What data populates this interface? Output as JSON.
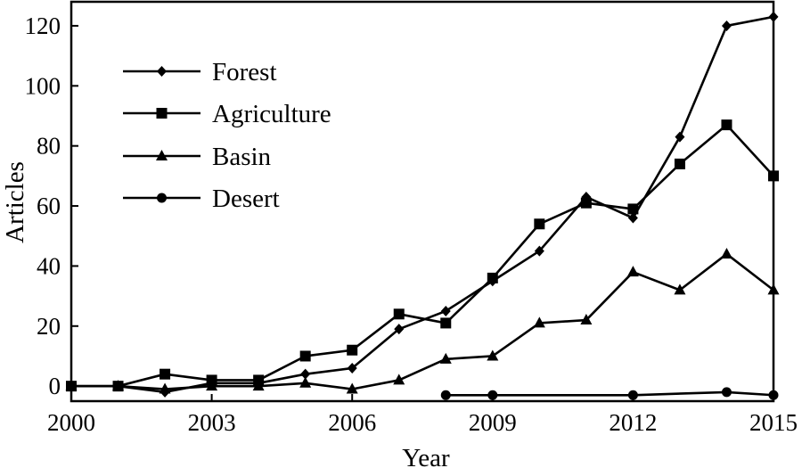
{
  "chart_data": {
    "type": "line",
    "title": "",
    "xlabel": "Year",
    "ylabel": "Articles",
    "xlim": [
      2000,
      2015
    ],
    "ylim": [
      -5,
      128
    ],
    "xticks": [
      2000,
      2003,
      2006,
      2009,
      2012,
      2015
    ],
    "yticks": [
      0,
      20,
      40,
      60,
      80,
      100,
      120
    ],
    "grid": false,
    "legend_position": "top-left",
    "series": [
      {
        "name": "Forest",
        "marker": "diamond",
        "color": "#000000",
        "x": [
          2000,
          2001,
          2002,
          2003,
          2004,
          2005,
          2006,
          2007,
          2008,
          2009,
          2010,
          2011,
          2012,
          2013,
          2014,
          2015
        ],
        "y": [
          0,
          0,
          -2,
          1,
          1,
          4,
          6,
          19,
          25,
          35,
          45,
          63,
          56,
          83,
          120,
          123
        ]
      },
      {
        "name": "Agriculture",
        "marker": "square",
        "color": "#000000",
        "x": [
          2000,
          2001,
          2002,
          2003,
          2004,
          2005,
          2006,
          2007,
          2008,
          2009,
          2010,
          2011,
          2012,
          2013,
          2014,
          2015
        ],
        "y": [
          0,
          0,
          4,
          2,
          2,
          10,
          12,
          24,
          21,
          36,
          54,
          61,
          59,
          74,
          87,
          70
        ]
      },
      {
        "name": "Basin",
        "marker": "triangle",
        "color": "#000000",
        "x": [
          2000,
          2001,
          2002,
          2003,
          2004,
          2005,
          2006,
          2007,
          2008,
          2009,
          2010,
          2011,
          2012,
          2013,
          2014,
          2015
        ],
        "y": [
          0,
          0,
          -1,
          0,
          0,
          1,
          -1,
          2,
          9,
          10,
          21,
          22,
          38,
          32,
          44,
          32
        ]
      },
      {
        "name": "Desert",
        "marker": "circle",
        "color": "#000000",
        "x": [
          2008,
          2009,
          2012,
          2014,
          2015
        ],
        "y": [
          -3,
          -3,
          -3,
          -2,
          -3
        ]
      }
    ]
  }
}
